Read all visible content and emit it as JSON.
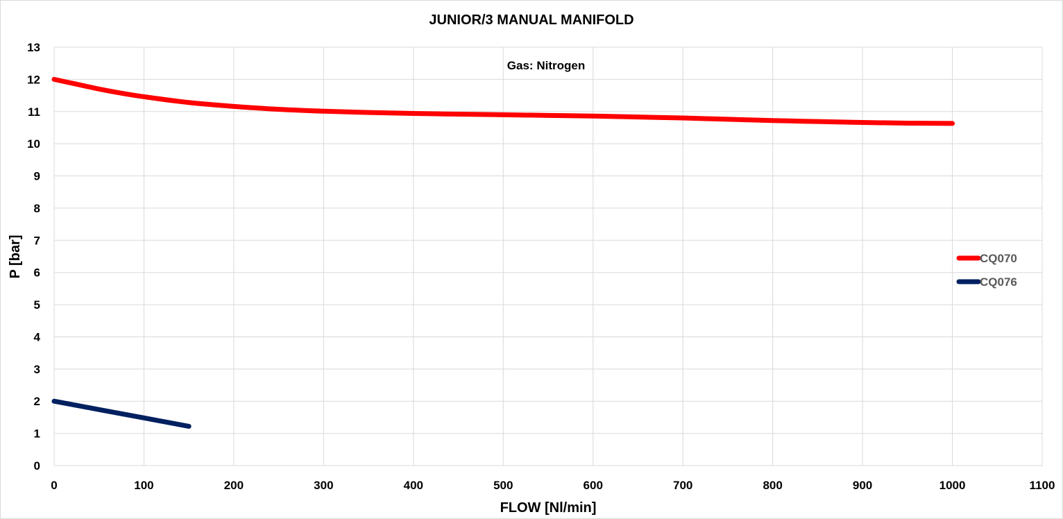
{
  "chart_data": {
    "type": "line",
    "title": "JUNIOR/3 MANUAL MANIFOLD",
    "xlabel": "FLOW [Nl/min]",
    "ylabel": "P [bar]",
    "annotation": "Gas: Nitrogen",
    "xlim": [
      0,
      1100
    ],
    "ylim": [
      0,
      13
    ],
    "x_ticks": [
      0,
      100,
      200,
      300,
      400,
      500,
      600,
      700,
      800,
      900,
      1000,
      1100
    ],
    "y_ticks": [
      0,
      1,
      2,
      3,
      4,
      5,
      6,
      7,
      8,
      9,
      10,
      11,
      12,
      13
    ],
    "grid": true,
    "legend_position": "right",
    "series": [
      {
        "name": "CQ070",
        "color": "#ff0000",
        "x": [
          0,
          25,
          50,
          75,
          100,
          150,
          200,
          250,
          300,
          350,
          400,
          450,
          500,
          550,
          600,
          650,
          700,
          750,
          800,
          850,
          900,
          950,
          1000
        ],
        "y": [
          12.0,
          11.85,
          11.7,
          11.57,
          11.46,
          11.28,
          11.16,
          11.07,
          11.01,
          10.97,
          10.94,
          10.92,
          10.9,
          10.88,
          10.86,
          10.83,
          10.8,
          10.76,
          10.72,
          10.69,
          10.66,
          10.64,
          10.63
        ]
      },
      {
        "name": "CQ076",
        "color": "#002060",
        "x": [
          0,
          50,
          100,
          150
        ],
        "y": [
          2.0,
          1.74,
          1.48,
          1.22
        ]
      }
    ]
  }
}
